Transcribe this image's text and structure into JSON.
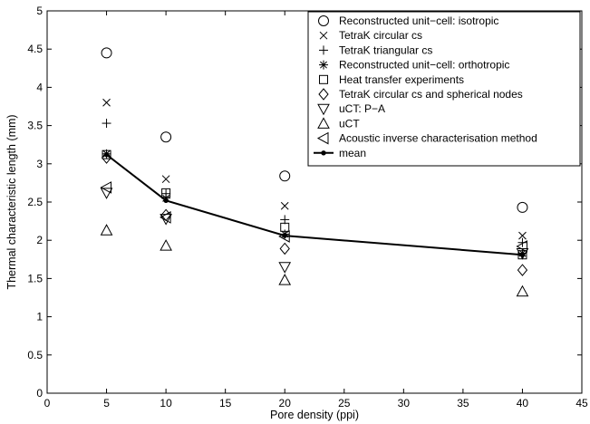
{
  "chart_data": {
    "type": "scatter",
    "xlabel": "Pore density (ppi)",
    "ylabel": "Thermal characteristic length (mm)",
    "xlim": [
      0,
      45
    ],
    "ylim": [
      0,
      5
    ],
    "x_ticks": [
      "0",
      "5",
      "10",
      "15",
      "20",
      "25",
      "30",
      "35",
      "40",
      "45"
    ],
    "y_ticks": [
      "0",
      "0.5",
      "1",
      "1.5",
      "2",
      "2.5",
      "3",
      "3.5",
      "4",
      "4.5",
      "5"
    ],
    "grid": false,
    "legend_position": "top-right",
    "series": [
      {
        "name": "Reconstructed unit−cell: isotropic",
        "marker": "circle",
        "x": [
          5,
          10,
          20,
          40
        ],
        "y": [
          4.45,
          3.35,
          2.84,
          2.43
        ]
      },
      {
        "name": "TetraK circular cs",
        "marker": "x",
        "x": [
          5,
          10,
          20,
          40
        ],
        "y": [
          3.8,
          2.8,
          2.45,
          2.06
        ]
      },
      {
        "name": "TetraK triangular cs",
        "marker": "plus",
        "x": [
          5,
          10,
          20,
          40
        ],
        "y": [
          3.53,
          2.61,
          2.27,
          1.97
        ]
      },
      {
        "name": "Reconstructed unit−cell: orthotropic",
        "marker": "star",
        "x": [
          5,
          10,
          20,
          40
        ],
        "y": [
          3.13,
          2.55,
          2.08,
          1.83
        ]
      },
      {
        "name": "Heat transfer experiments",
        "marker": "square",
        "x": [
          5,
          10,
          20,
          40
        ],
        "y": [
          3.12,
          2.62,
          2.17,
          1.81
        ]
      },
      {
        "name": "TetraK circular cs and spherical nodes",
        "marker": "diamond",
        "x": [
          5,
          10,
          20,
          40
        ],
        "y": [
          3.08,
          2.33,
          1.89,
          1.61
        ]
      },
      {
        "name": "uCT: P−A",
        "marker": "triangle-down",
        "x": [
          5,
          10,
          20,
          40
        ],
        "y": [
          2.62,
          2.28,
          1.65,
          1.83
        ]
      },
      {
        "name": "uCT",
        "marker": "triangle-up",
        "x": [
          5,
          10,
          20,
          40
        ],
        "y": [
          2.13,
          1.93,
          1.48,
          1.33
        ]
      },
      {
        "name": "Acoustic inverse characterisation method",
        "marker": "triangle-left",
        "x": [
          5,
          10,
          20,
          40
        ],
        "y": [
          2.69,
          2.3,
          2.05,
          1.92
        ]
      },
      {
        "name": "mean",
        "marker": "dot-line",
        "x": [
          5,
          10,
          20,
          40
        ],
        "y": [
          3.12,
          2.52,
          2.06,
          1.81
        ]
      }
    ]
  }
}
